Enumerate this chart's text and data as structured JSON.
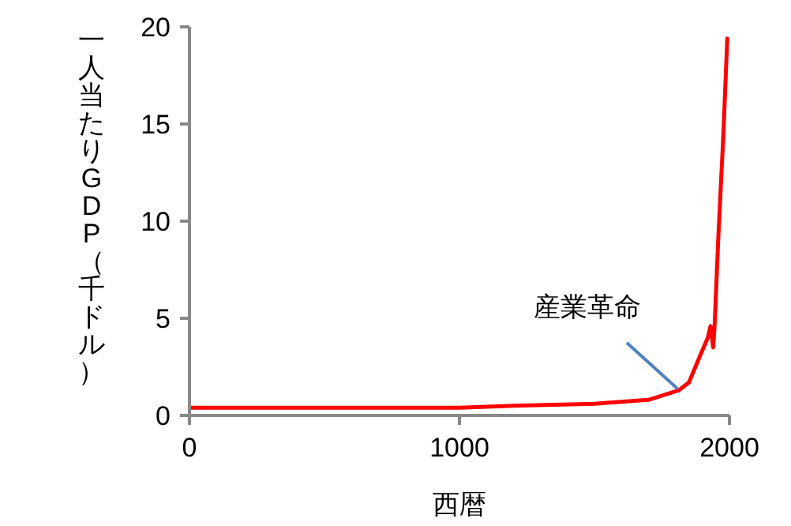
{
  "chart_data": {
    "type": "line",
    "xlabel": "西暦",
    "ylabel": "一人当たりGDP（千ドル）",
    "x": [
      0,
      500,
      1000,
      1200,
      1500,
      1700,
      1813,
      1850,
      1889,
      1920,
      1930,
      1940,
      1945,
      1959,
      1978,
      1992
    ],
    "series": [
      {
        "color": "#ff0000",
        "values": [
          0.4,
          0.4,
          0.4,
          0.5,
          0.6,
          0.8,
          1.3,
          1.7,
          3.0,
          4.0,
          4.6,
          3.5,
          4.6,
          9.2,
          14.6,
          19.4
        ]
      }
    ],
    "xlim": [
      0,
      2000
    ],
    "xticks": [
      0,
      1000,
      2000
    ],
    "ylim": [
      0,
      20
    ],
    "yticks": [
      0,
      5,
      10,
      15,
      20
    ],
    "grid": false,
    "legend": false,
    "marker": "none",
    "line_style": "solid",
    "annotations": [
      {
        "text": "産業革命",
        "x": 1813,
        "y": 1.3
      }
    ]
  }
}
